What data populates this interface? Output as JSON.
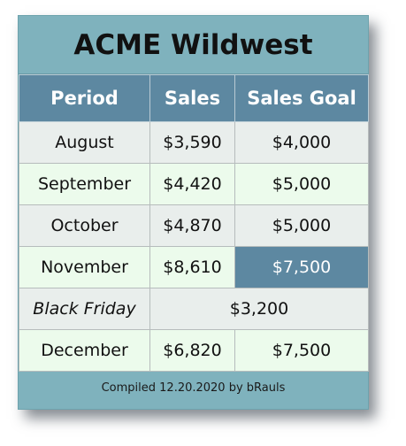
{
  "title": "ACME Wildwest",
  "columns": [
    "Period",
    "Sales",
    "Sales Goal"
  ],
  "rows": [
    {
      "period": "August",
      "sales": "$3,590",
      "goal": "$4,000"
    },
    {
      "period": "September",
      "sales": "$4,420",
      "goal": "$5,000"
    },
    {
      "period": "October",
      "sales": "$4,870",
      "goal": "$5,000"
    },
    {
      "period": "November",
      "sales": "$8,610",
      "goal": "$7,500"
    },
    {
      "period": "Black Friday",
      "merged": "$3,200"
    },
    {
      "period": "December",
      "sales": "$6,820",
      "goal": "$7,500"
    }
  ],
  "footer": "Compiled 12.20.2020 by bRauls",
  "colors": {
    "card_bg": "#7fb2bd",
    "header_bg": "#5d88a1",
    "highlight_bg": "#5d88a1",
    "row_odd": "#e9eeec",
    "row_even": "#ecfbec"
  }
}
